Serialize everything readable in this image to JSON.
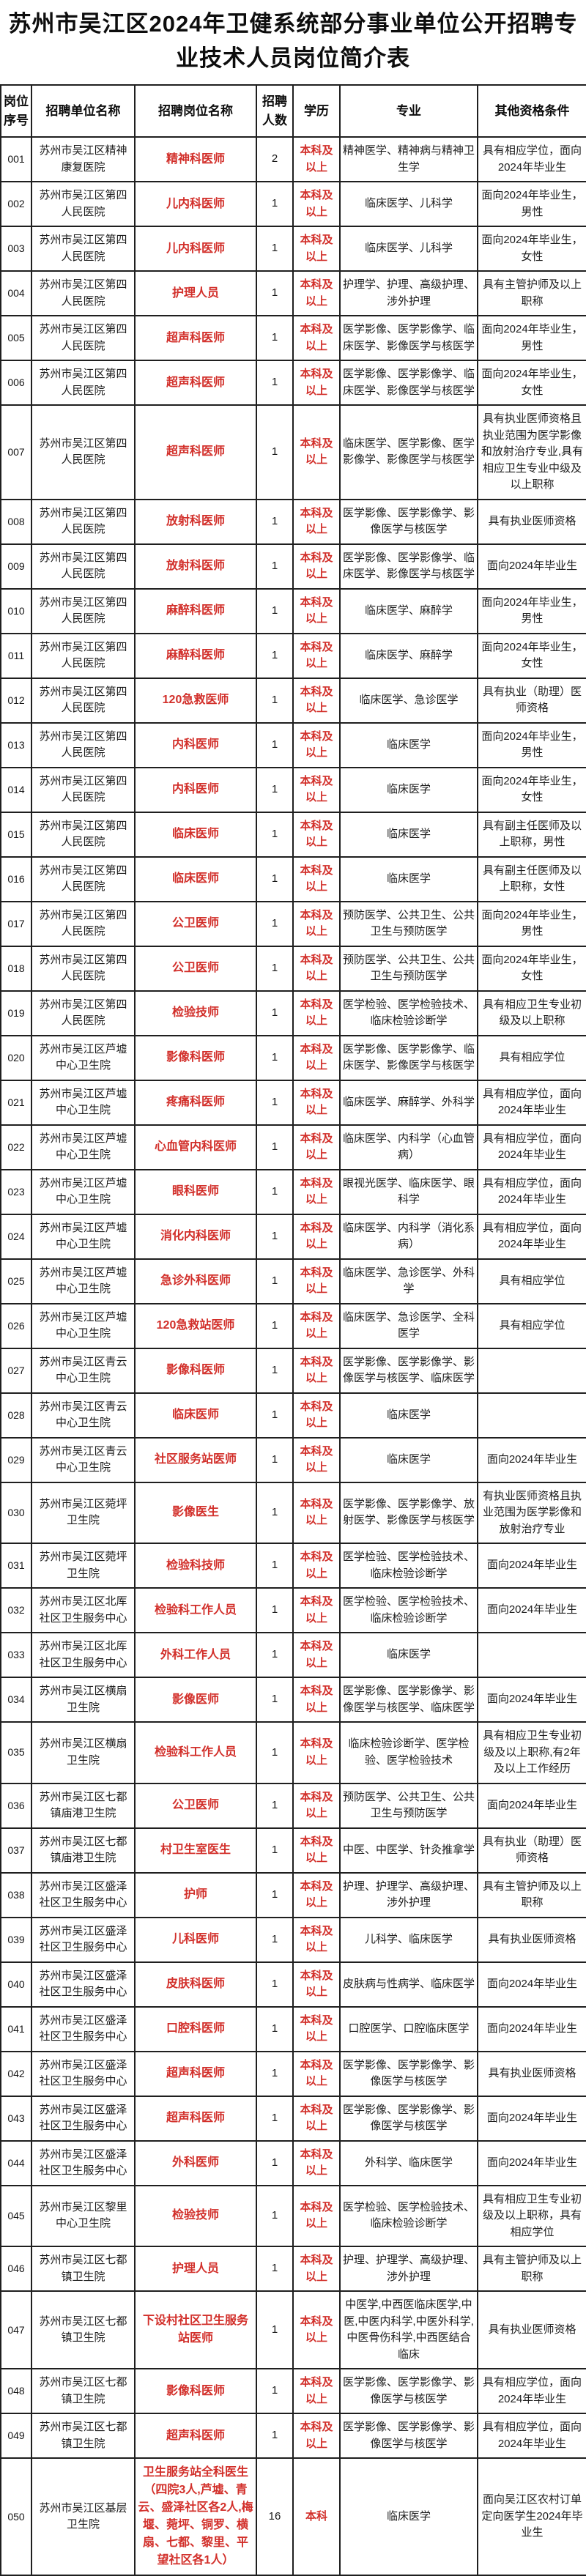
{
  "title": "苏州市吴江区2024年卫健系统部分事业单位公开招聘专业技术人员岗位简介表",
  "colors": {
    "accent_red": "#d22f2a",
    "text": "#161616",
    "border": "#1f1f1f",
    "background": "#ffffff"
  },
  "table": {
    "headers": [
      "岗位序号",
      "招聘单位名称",
      "招聘岗位名称",
      "招聘人数",
      "学历",
      "专业",
      "其他资格条件"
    ],
    "rows": [
      {
        "no": "001",
        "unit": "苏州市吴江区精神康复医院",
        "position": "精神科医师",
        "count": "2",
        "education": "本科及以上",
        "major": "精神医学、精神病与精神卫生学",
        "requirements": "具有相应学位，面向2024年毕业生"
      },
      {
        "no": "002",
        "unit": "苏州市吴江区第四人民医院",
        "position": "儿内科医师",
        "count": "1",
        "education": "本科及以上",
        "major": "临床医学、儿科学",
        "requirements": "面向2024年毕业生，男性"
      },
      {
        "no": "003",
        "unit": "苏州市吴江区第四人民医院",
        "position": "儿内科医师",
        "count": "1",
        "education": "本科及以上",
        "major": "临床医学、儿科学",
        "requirements": "面向2024年毕业生，女性"
      },
      {
        "no": "004",
        "unit": "苏州市吴江区第四人民医院",
        "position": "护理人员",
        "count": "1",
        "education": "本科及以上",
        "major": "护理学、护理、高级护理、涉外护理",
        "requirements": "具有主管护师及以上职称"
      },
      {
        "no": "005",
        "unit": "苏州市吴江区第四人民医院",
        "position": "超声科医师",
        "count": "1",
        "education": "本科及以上",
        "major": "医学影像、医学影像学、临床医学、影像医学与核医学",
        "requirements": "面向2024年毕业生，男性"
      },
      {
        "no": "006",
        "unit": "苏州市吴江区第四人民医院",
        "position": "超声科医师",
        "count": "1",
        "education": "本科及以上",
        "major": "医学影像、医学影像学、临床医学、影像医学与核医学",
        "requirements": "面向2024年毕业生，女性"
      },
      {
        "no": "007",
        "unit": "苏州市吴江区第四人民医院",
        "position": "超声科医师",
        "count": "1",
        "education": "本科及以上",
        "major": "临床医学、医学影像、医学影像学、影像医学与核医学",
        "requirements": "具有执业医师资格且执业范围为医学影像和放射治疗专业,具有相应卫生专业中级及以上职称"
      },
      {
        "no": "008",
        "unit": "苏州市吴江区第四人民医院",
        "position": "放射科医师",
        "count": "1",
        "education": "本科及以上",
        "major": "医学影像、医学影像学、影像医学与核医学",
        "requirements": "具有执业医师资格"
      },
      {
        "no": "009",
        "unit": "苏州市吴江区第四人民医院",
        "position": "放射科医师",
        "count": "1",
        "education": "本科及以上",
        "major": "医学影像、医学影像学、临床医学、影像医学与核医学",
        "requirements": "面向2024年毕业生"
      },
      {
        "no": "010",
        "unit": "苏州市吴江区第四人民医院",
        "position": "麻醉科医师",
        "count": "1",
        "education": "本科及以上",
        "major": "临床医学、麻醉学",
        "requirements": "面向2024年毕业生，男性"
      },
      {
        "no": "011",
        "unit": "苏州市吴江区第四人民医院",
        "position": "麻醉科医师",
        "count": "1",
        "education": "本科及以上",
        "major": "临床医学、麻醉学",
        "requirements": "面向2024年毕业生，女性"
      },
      {
        "no": "012",
        "unit": "苏州市吴江区第四人民医院",
        "position": "120急救医师",
        "count": "1",
        "education": "本科及以上",
        "major": "临床医学、急诊医学",
        "requirements": "具有执业（助理）医师资格"
      },
      {
        "no": "013",
        "unit": "苏州市吴江区第四人民医院",
        "position": "内科医师",
        "count": "1",
        "education": "本科及以上",
        "major": "临床医学",
        "requirements": "面向2024年毕业生，男性"
      },
      {
        "no": "014",
        "unit": "苏州市吴江区第四人民医院",
        "position": "内科医师",
        "count": "1",
        "education": "本科及以上",
        "major": "临床医学",
        "requirements": "面向2024年毕业生，女性"
      },
      {
        "no": "015",
        "unit": "苏州市吴江区第四人民医院",
        "position": "临床医师",
        "count": "1",
        "education": "本科及以上",
        "major": "临床医学",
        "requirements": "具有副主任医师及以上职称，男性"
      },
      {
        "no": "016",
        "unit": "苏州市吴江区第四人民医院",
        "position": "临床医师",
        "count": "1",
        "education": "本科及以上",
        "major": "临床医学",
        "requirements": "具有副主任医师及以上职称，女性"
      },
      {
        "no": "017",
        "unit": "苏州市吴江区第四人民医院",
        "position": "公卫医师",
        "count": "1",
        "education": "本科及以上",
        "major": "预防医学、公共卫生、公共卫生与预防医学",
        "requirements": "面向2024年毕业生，男性"
      },
      {
        "no": "018",
        "unit": "苏州市吴江区第四人民医院",
        "position": "公卫医师",
        "count": "1",
        "education": "本科及以上",
        "major": "预防医学、公共卫生、公共卫生与预防医学",
        "requirements": "面向2024年毕业生，女性"
      },
      {
        "no": "019",
        "unit": "苏州市吴江区第四人民医院",
        "position": "检验技师",
        "count": "1",
        "education": "本科及以上",
        "major": "医学检验、医学检验技术、临床检验诊断学",
        "requirements": "具有相应卫生专业初级及以上职称"
      },
      {
        "no": "020",
        "unit": "苏州市吴江区芦墟中心卫生院",
        "position": "影像科医师",
        "count": "1",
        "education": "本科及以上",
        "major": "医学影像、医学影像学、临床医学、影像医学与核医学",
        "requirements": "具有相应学位"
      },
      {
        "no": "021",
        "unit": "苏州市吴江区芦墟中心卫生院",
        "position": "疼痛科医师",
        "count": "1",
        "education": "本科及以上",
        "major": "临床医学、麻醉学、外科学",
        "requirements": "具有相应学位，面向2024年毕业生"
      },
      {
        "no": "022",
        "unit": "苏州市吴江区芦墟中心卫生院",
        "position": "心血管内科医师",
        "count": "1",
        "education": "本科及以上",
        "major": "临床医学、内科学（心血管病）",
        "requirements": "具有相应学位，面向2024年毕业生"
      },
      {
        "no": "023",
        "unit": "苏州市吴江区芦墟中心卫生院",
        "position": "眼科医师",
        "count": "1",
        "education": "本科及以上",
        "major": "眼视光医学、临床医学、眼科学",
        "requirements": "具有相应学位，面向2024年毕业生"
      },
      {
        "no": "024",
        "unit": "苏州市吴江区芦墟中心卫生院",
        "position": "消化内科医师",
        "count": "1",
        "education": "本科及以上",
        "major": "临床医学、内科学（消化系病）",
        "requirements": "具有相应学位，面向2024年毕业生"
      },
      {
        "no": "025",
        "unit": "苏州市吴江区芦墟中心卫生院",
        "position": "急诊外科医师",
        "count": "1",
        "education": "本科及以上",
        "major": "临床医学、急诊医学、外科学",
        "requirements": "具有相应学位"
      },
      {
        "no": "026",
        "unit": "苏州市吴江区芦墟中心卫生院",
        "position": "120急救站医师",
        "count": "1",
        "education": "本科及以上",
        "major": "临床医学、急诊医学、全科医学",
        "requirements": "具有相应学位"
      },
      {
        "no": "027",
        "unit": "苏州市吴江区青云中心卫生院",
        "position": "影像科医师",
        "count": "1",
        "education": "本科及以上",
        "major": "医学影像、医学影像学、影像医学与核医学、临床医学",
        "requirements": ""
      },
      {
        "no": "028",
        "unit": "苏州市吴江区青云中心卫生院",
        "position": "临床医师",
        "count": "1",
        "education": "本科及以上",
        "major": "临床医学",
        "requirements": ""
      },
      {
        "no": "029",
        "unit": "苏州市吴江区青云中心卫生院",
        "position": "社区服务站医师",
        "count": "1",
        "education": "本科及以上",
        "major": "临床医学",
        "requirements": "面向2024年毕业生"
      },
      {
        "no": "030",
        "unit": "苏州市吴江区菀坪卫生院",
        "position": "影像医生",
        "count": "1",
        "education": "本科及以上",
        "major": "医学影像、医学影像学、放射医学、影像医学与核医学",
        "requirements": "有执业医师资格且执业范围为医学影像和放射治疗专业"
      },
      {
        "no": "031",
        "unit": "苏州市吴江区菀坪卫生院",
        "position": "检验科技师",
        "count": "1",
        "education": "本科及以上",
        "major": "医学检验、医学检验技术、临床检验诊断学",
        "requirements": "面向2024年毕业生"
      },
      {
        "no": "032",
        "unit": "苏州市吴江区北厍社区卫生服务中心",
        "position": "检验科工作人员",
        "count": "1",
        "education": "本科及以上",
        "major": "医学检验、医学检验技术、临床检验诊断学",
        "requirements": "面向2024年毕业生"
      },
      {
        "no": "033",
        "unit": "苏州市吴江区北厍社区卫生服务中心",
        "position": "外科工作人员",
        "count": "1",
        "education": "本科及以上",
        "major": "临床医学",
        "requirements": ""
      },
      {
        "no": "034",
        "unit": "苏州市吴江区横扇卫生院",
        "position": "影像医师",
        "count": "1",
        "education": "本科及以上",
        "major": "医学影像、医学影像学、影像医学与核医学、临床医学",
        "requirements": "面向2024年毕业生"
      },
      {
        "no": "035",
        "unit": "苏州市吴江区横扇卫生院",
        "position": "检验科工作人员",
        "count": "1",
        "education": "本科及以上",
        "major": "临床检验诊断学、医学检验、医学检验技术",
        "requirements": "具有相应卫生专业初级及以上职称,有2年及以上工作经历"
      },
      {
        "no": "036",
        "unit": "苏州市吴江区七都镇庙港卫生院",
        "position": "公卫医师",
        "count": "1",
        "education": "本科及以上",
        "major": "预防医学、公共卫生、公共卫生与预防医学",
        "requirements": "面向2024年毕业生"
      },
      {
        "no": "037",
        "unit": "苏州市吴江区七都镇庙港卫生院",
        "position": "村卫生室医生",
        "count": "1",
        "education": "本科及以上",
        "major": "中医、中医学、针灸推拿学",
        "requirements": "具有执业（助理）医师资格"
      },
      {
        "no": "038",
        "unit": "苏州市吴江区盛泽社区卫生服务中心",
        "position": "护师",
        "count": "1",
        "education": "本科及以上",
        "major": "护理、护理学、高级护理、涉外护理",
        "requirements": "具有主管护师及以上职称"
      },
      {
        "no": "039",
        "unit": "苏州市吴江区盛泽社区卫生服务中心",
        "position": "儿科医师",
        "count": "1",
        "education": "本科及以上",
        "major": "儿科学、临床医学",
        "requirements": "具有执业医师资格"
      },
      {
        "no": "040",
        "unit": "苏州市吴江区盛泽社区卫生服务中心",
        "position": "皮肤科医师",
        "count": "1",
        "education": "本科及以上",
        "major": "皮肤病与性病学、临床医学",
        "requirements": "面向2024年毕业生"
      },
      {
        "no": "041",
        "unit": "苏州市吴江区盛泽社区卫生服务中心",
        "position": "口腔科医师",
        "count": "1",
        "education": "本科及以上",
        "major": "口腔医学、口腔临床医学",
        "requirements": "面向2024年毕业生"
      },
      {
        "no": "042",
        "unit": "苏州市吴江区盛泽社区卫生服务中心",
        "position": "超声科医师",
        "count": "1",
        "education": "本科及以上",
        "major": "医学影像、医学影像学、影像医学与核医学",
        "requirements": "具有执业医师资格"
      },
      {
        "no": "043",
        "unit": "苏州市吴江区盛泽社区卫生服务中心",
        "position": "超声科医师",
        "count": "1",
        "education": "本科及以上",
        "major": "医学影像、医学影像学、影像医学与核医学",
        "requirements": "面向2024年毕业生"
      },
      {
        "no": "044",
        "unit": "苏州市吴江区盛泽社区卫生服务中心",
        "position": "外科医师",
        "count": "1",
        "education": "本科及以上",
        "major": "外科学、临床医学",
        "requirements": "面向2024年毕业生"
      },
      {
        "no": "045",
        "unit": "苏州市吴江区黎里中心卫生院",
        "position": "检验技师",
        "count": "1",
        "education": "本科及以上",
        "major": "医学检验、医学检验技术、临床检验诊断学",
        "requirements": "具有相应卫生专业初级及以上职称，具有相应学位"
      },
      {
        "no": "046",
        "unit": "苏州市吴江区七都镇卫生院",
        "position": "护理人员",
        "count": "1",
        "education": "本科及以上",
        "major": "护理、护理学、高级护理、涉外护理",
        "requirements": "具有主管护师及以上职称"
      },
      {
        "no": "047",
        "unit": "苏州市吴江区七都镇卫生院",
        "position": "下设村社区卫生服务站医师",
        "count": "1",
        "education": "本科及以上",
        "major": "中医学,中西医临床医学,中医,中医内科学,中医外科学,中医骨伤科学,中西医结合临床",
        "requirements": "具有执业医师资格"
      },
      {
        "no": "048",
        "unit": "苏州市吴江区七都镇卫生院",
        "position": "影像科医师",
        "count": "1",
        "education": "本科及以上",
        "major": "医学影像、医学影像学、影像医学与核医学",
        "requirements": "具有相应学位，面向2024年毕业生"
      },
      {
        "no": "049",
        "unit": "苏州市吴江区七都镇卫生院",
        "position": "超声科医师",
        "count": "1",
        "education": "本科及以上",
        "major": "医学影像、医学影像学、影像医学与核医学",
        "requirements": "具有相应学位，面向2024年毕业生"
      },
      {
        "no": "050",
        "unit": "苏州市吴江区基层卫生院",
        "position": "卫生服务站全科医生（四院3人,芦墟、青云、盛泽社区各2人,梅堰、菀坪、铜罗、横扇、七都、黎里、平望社区各1人）",
        "count": "16",
        "education": "本科",
        "major": "临床医学",
        "requirements": "面向吴江区农村订单定向医学生2024年毕业生"
      }
    ]
  }
}
